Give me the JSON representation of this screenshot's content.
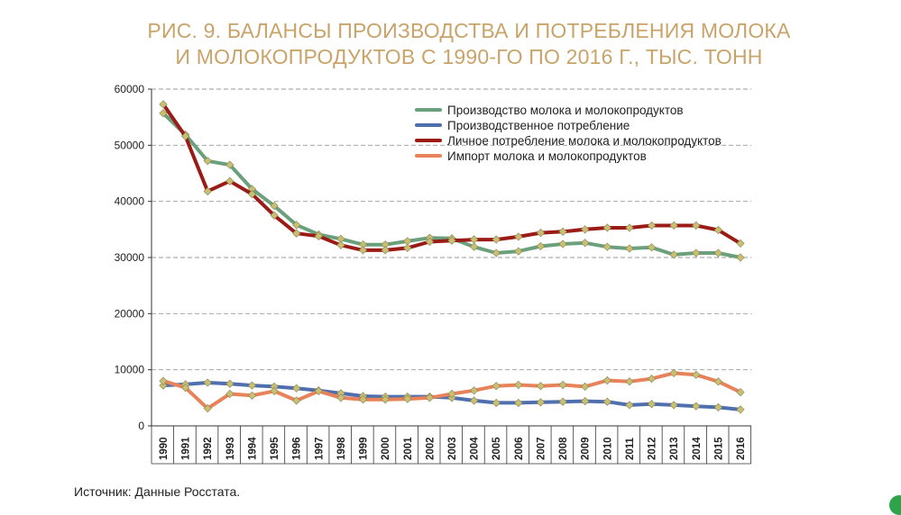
{
  "title_line1": "РИС. 9. БАЛАНСЫ ПРОИЗВОДСТВА И ПОТРЕБЛЕНИЯ МОЛОКА",
  "title_line2": "И МОЛОКОПРОДУКТОВ С 1990-ГО ПО 2016 Г., ТЫС. ТОНН",
  "source": "Источник: Данные Росстата.",
  "colors": {
    "grid": "#999999",
    "axis": "#333333",
    "marker_fill": "#c8bf73"
  },
  "chart_data": {
    "type": "line",
    "x": [
      "1990",
      "1991",
      "1992",
      "1993",
      "1994",
      "1995",
      "1996",
      "1997",
      "1998",
      "1999",
      "2000",
      "2001",
      "2002",
      "2003",
      "2004",
      "2005",
      "2006",
      "2007",
      "2008",
      "2009",
      "2010",
      "2011",
      "2012",
      "2013",
      "2014",
      "2015",
      "2016"
    ],
    "ylim": [
      0,
      60000
    ],
    "yticks": [
      "0",
      "10000",
      "20000",
      "30000",
      "40000",
      "50000",
      "60000"
    ],
    "ytick_values": [
      0,
      10000,
      20000,
      30000,
      40000,
      50000,
      60000
    ],
    "grid": true,
    "legend_position": "top-right",
    "series": [
      {
        "name": "Производство молока и молокопродуктов",
        "color": "#6aa07c",
        "values": [
          55700,
          51900,
          47200,
          46500,
          42200,
          39200,
          35800,
          34100,
          33300,
          32300,
          32300,
          32900,
          33500,
          33400,
          31900,
          30800,
          31100,
          32000,
          32400,
          32600,
          31900,
          31600,
          31800,
          30500,
          30800,
          30800,
          30000
        ]
      },
      {
        "name": "Производственное потребление",
        "color": "#4f6fae",
        "values": [
          7200,
          7400,
          7700,
          7500,
          7200,
          7000,
          6700,
          6300,
          5800,
          5300,
          5200,
          5200,
          5200,
          5000,
          4500,
          4100,
          4100,
          4200,
          4300,
          4400,
          4300,
          3700,
          3900,
          3700,
          3500,
          3300,
          2900
        ]
      },
      {
        "name": "Личное потребление молока и молокопродуктов",
        "color": "#9b1c17",
        "values": [
          57300,
          51600,
          41800,
          43600,
          41300,
          37500,
          34300,
          33800,
          32200,
          31300,
          31300,
          31700,
          32800,
          33000,
          33200,
          33200,
          33700,
          34400,
          34600,
          35000,
          35300,
          35300,
          35700,
          35700,
          35700,
          34900,
          32500
        ]
      },
      {
        "name": "Импорт молока и молокопродуктов",
        "color": "#e8825a",
        "values": [
          8000,
          6800,
          3100,
          5700,
          5400,
          6200,
          4500,
          6200,
          5000,
          4700,
          4700,
          4800,
          5000,
          5700,
          6300,
          7100,
          7300,
          7100,
          7300,
          7000,
          8100,
          7900,
          8400,
          9400,
          9100,
          7900,
          6000
        ]
      }
    ]
  }
}
